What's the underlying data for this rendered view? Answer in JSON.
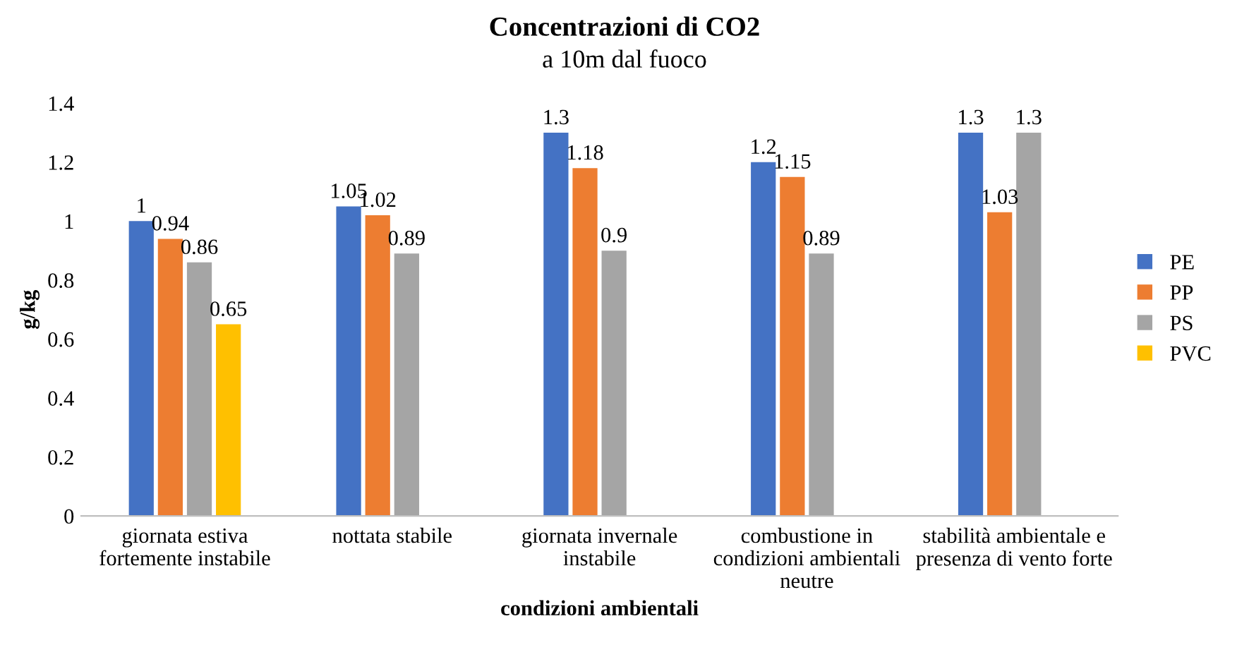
{
  "chart_data": {
    "type": "bar",
    "title": "Concentrazioni di CO2",
    "subtitle": "a 10m dal fuoco",
    "xlabel": "condizioni ambientali",
    "ylabel": "g/kg",
    "categories": [
      "giornata estiva\nfortemente instabile",
      "nottata stabile",
      "giornata invernale\ninstabile",
      "combustione in\ncondizioni ambientali\nneutre",
      "stabilità ambientale e\npresenza di vento forte"
    ],
    "series": [
      {
        "name": "PE",
        "color": "#4472c4",
        "values": [
          1,
          1.05,
          1.3,
          1.2,
          1.3
        ]
      },
      {
        "name": "PP",
        "color": "#ed7d31",
        "values": [
          0.94,
          1.02,
          1.18,
          1.15,
          1.03
        ]
      },
      {
        "name": "PS",
        "color": "#a5a5a5",
        "values": [
          0.86,
          0.89,
          0.9,
          0.89,
          1.3
        ]
      },
      {
        "name": "PVC",
        "color": "#ffc000",
        "values": [
          0.65,
          null,
          null,
          null,
          null
        ]
      }
    ],
    "ylim": [
      0,
      1.4
    ],
    "yticks": [
      0,
      0.2,
      0.4,
      0.6,
      0.8,
      1,
      1.2,
      1.4
    ],
    "data_labels": true,
    "legend": "right",
    "grid": false
  }
}
